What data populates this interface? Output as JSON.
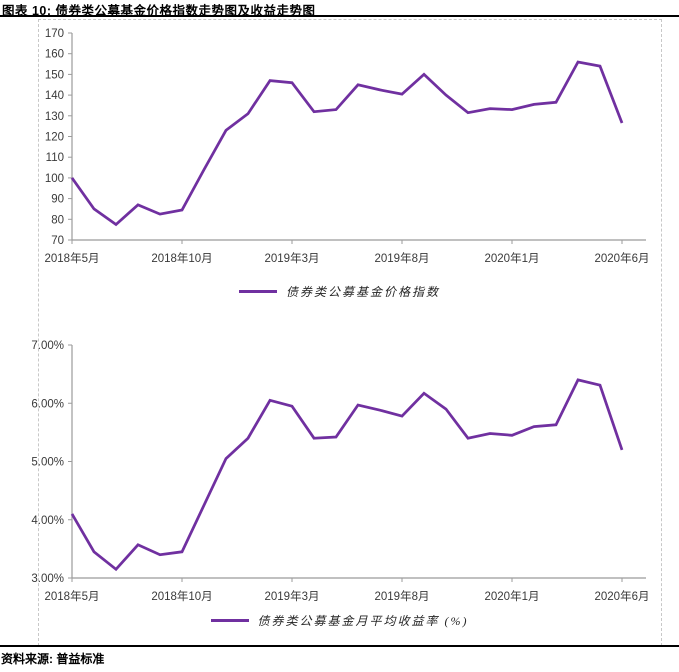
{
  "figure": {
    "title": "图表 10: 债券类公募基金价格指数走势图及收益走势图",
    "source": "资料来源: 普益标准"
  },
  "colors": {
    "series_line": "#7030A0",
    "axis": "#9b9b9b",
    "tick_label": "#3a3a3a",
    "divider_rule": "#000000",
    "object_border_dashed": "#c8c8c8"
  },
  "chart_data": [
    {
      "type": "line",
      "x": [
        "2018-05",
        "2018-06",
        "2018-07",
        "2018-08",
        "2018-09",
        "2018-10",
        "2018-11",
        "2018-12",
        "2019-01",
        "2019-02",
        "2019-03",
        "2019-04",
        "2019-05",
        "2019-06",
        "2019-07",
        "2019-08",
        "2019-09",
        "2019-10",
        "2019-11",
        "2019-12",
        "2020-01",
        "2020-02",
        "2020-03",
        "2020-04",
        "2020-05",
        "2020-06"
      ],
      "x_tick_labels": [
        "2018年5月",
        "2018年10月",
        "2019年3月",
        "2019年8月",
        "2020年1月",
        "2020年6月"
      ],
      "x_tick_indices": [
        0,
        5,
        10,
        15,
        20,
        25
      ],
      "series": [
        {
          "name": "债券类公募基金价格指数",
          "color": "#7030A0",
          "values": [
            100,
            85,
            77.5,
            87,
            82.5,
            84.5,
            104,
            123,
            131,
            147,
            146,
            132,
            133,
            145,
            142.5,
            140.5,
            150,
            140,
            131.5,
            133.5,
            133,
            135.5,
            136.5,
            156,
            154,
            126.5
          ]
        }
      ],
      "ylim": [
        70,
        170
      ],
      "ytick_values": [
        70,
        80,
        90,
        100,
        110,
        120,
        130,
        140,
        150,
        160,
        170
      ],
      "ytick_labels": [
        "70",
        "80",
        "90",
        "100",
        "110",
        "120",
        "130",
        "140",
        "150",
        "160",
        "170"
      ],
      "grid": false,
      "legend_position": "bottom"
    },
    {
      "type": "line",
      "x": [
        "2018-05",
        "2018-06",
        "2018-07",
        "2018-08",
        "2018-09",
        "2018-10",
        "2018-11",
        "2018-12",
        "2019-01",
        "2019-02",
        "2019-03",
        "2019-04",
        "2019-05",
        "2019-06",
        "2019-07",
        "2019-08",
        "2019-09",
        "2019-10",
        "2019-11",
        "2019-12",
        "2020-01",
        "2020-02",
        "2020-03",
        "2020-04",
        "2020-05",
        "2020-06"
      ],
      "x_tick_labels": [
        "2018年5月",
        "2018年10月",
        "2019年3月",
        "2019年8月",
        "2020年1月",
        "2020年6月"
      ],
      "x_tick_indices": [
        0,
        5,
        10,
        15,
        20,
        25
      ],
      "series": [
        {
          "name": "债券类公募基金月平均收益率 (%)",
          "color": "#7030A0",
          "values": [
            4.1,
            3.45,
            3.15,
            3.57,
            3.4,
            3.45,
            4.25,
            5.05,
            5.4,
            6.05,
            5.95,
            5.4,
            5.42,
            5.97,
            5.88,
            5.78,
            6.17,
            5.9,
            5.4,
            5.48,
            5.45,
            5.6,
            5.63,
            6.4,
            6.31,
            5.2
          ]
        }
      ],
      "ylim": [
        3,
        7
      ],
      "ytick_values": [
        3,
        4,
        5,
        6,
        7
      ],
      "ytick_labels": [
        "3.00%",
        "4.00%",
        "5.00%",
        "6.00%",
        "7.00%"
      ],
      "grid": false,
      "legend_position": "bottom"
    }
  ]
}
